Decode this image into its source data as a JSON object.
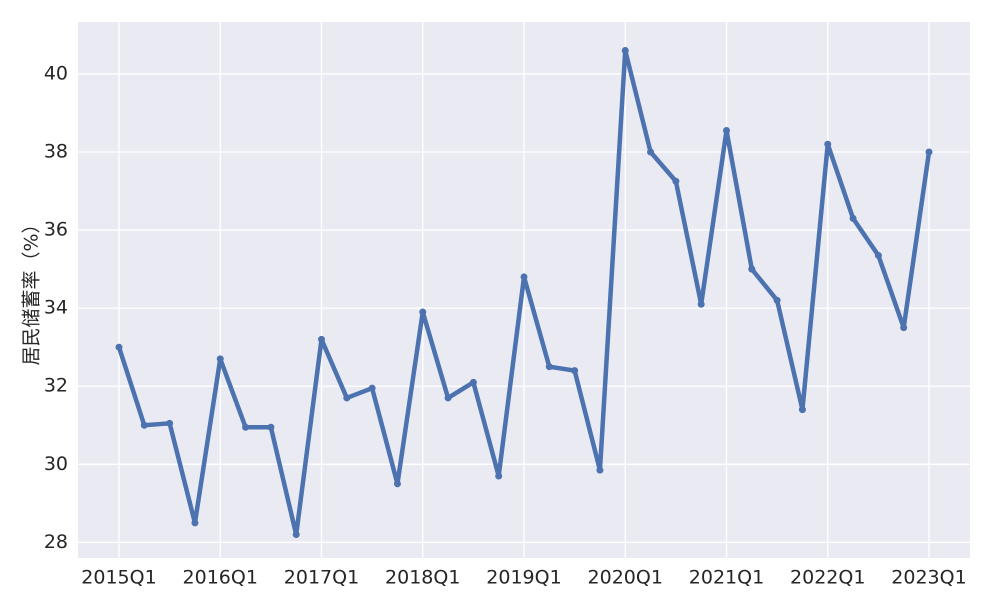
{
  "chart_data": {
    "type": "line",
    "y_label": "居民储蓄率（%）",
    "categories": [
      "2015Q1",
      null,
      null,
      null,
      "2016Q1",
      null,
      null,
      null,
      "2017Q1",
      null,
      null,
      null,
      "2018Q1",
      null,
      null,
      null,
      "2019Q1",
      null,
      null,
      null,
      "2020Q1",
      null,
      null,
      null,
      "2021Q1",
      null,
      null,
      null,
      "2022Q1",
      null,
      null,
      null,
      "2023Q1"
    ],
    "series": [
      {
        "color": "#4c72b0",
        "values": [
          33.0,
          31.0,
          31.05,
          28.5,
          32.7,
          30.95,
          30.95,
          28.2,
          33.2,
          31.7,
          31.95,
          29.5,
          33.9,
          31.7,
          32.1,
          29.7,
          34.8,
          32.5,
          32.4,
          29.85,
          40.6,
          38.0,
          37.25,
          34.1,
          38.55,
          35.0,
          34.2,
          31.4,
          38.2,
          36.3,
          35.35,
          33.5,
          38.0
        ]
      }
    ],
    "ylim": [
      27.6,
      41.33
    ],
    "yticks": [
      28,
      30,
      32,
      34,
      36,
      38,
      40
    ],
    "grid": true
  }
}
